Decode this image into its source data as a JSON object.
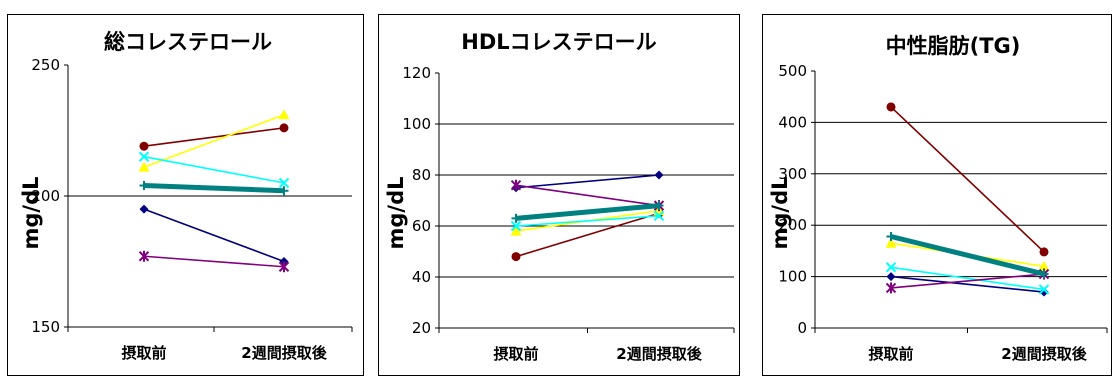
{
  "chart_data": [
    {
      "type": "line",
      "title": "総コレステロール",
      "ylabel": "mg/dL",
      "categories": [
        "摂取前",
        "2週間摂取後"
      ],
      "ylim": [
        150,
        250
      ],
      "yticks": [
        150,
        200,
        250
      ],
      "grid": "y",
      "series": [
        {
          "color": "#000080",
          "marker": "diamond",
          "values": [
            195,
            175
          ]
        },
        {
          "color": "#800000",
          "marker": "circle",
          "values": [
            219,
            226
          ]
        },
        {
          "color": "#FFFF00",
          "marker": "triangle",
          "values": [
            211,
            231
          ]
        },
        {
          "color": "#00FFFF",
          "marker": "x",
          "values": [
            215,
            205
          ]
        },
        {
          "color": "#800080",
          "marker": "star",
          "values": [
            177,
            173
          ]
        },
        {
          "color": "#008080",
          "marker": "plus",
          "values": [
            204,
            202
          ],
          "thick": true
        }
      ]
    },
    {
      "type": "line",
      "title": "HDLコレステロール",
      "ylabel": "mg/dL",
      "categories": [
        "摂取前",
        "2週間摂取後"
      ],
      "ylim": [
        20,
        120
      ],
      "yticks": [
        20,
        40,
        60,
        80,
        100,
        120
      ],
      "grid": "y",
      "series": [
        {
          "color": "#000080",
          "marker": "diamond",
          "values": [
            75,
            80
          ]
        },
        {
          "color": "#800000",
          "marker": "circle",
          "values": [
            48,
            65
          ]
        },
        {
          "color": "#FFFF00",
          "marker": "triangle",
          "values": [
            58,
            66
          ]
        },
        {
          "color": "#00FFFF",
          "marker": "x",
          "values": [
            60,
            64
          ]
        },
        {
          "color": "#800080",
          "marker": "star",
          "values": [
            76,
            68
          ]
        },
        {
          "color": "#008080",
          "marker": "plus",
          "values": [
            63,
            68
          ],
          "thick": true
        }
      ]
    },
    {
      "type": "line",
      "title": "中性脂肪(TG)",
      "ylabel": "mg/dL",
      "categories": [
        "摂取前",
        "2週間摂取後"
      ],
      "ylim": [
        0,
        500
      ],
      "yticks": [
        0,
        100,
        200,
        300,
        400,
        500
      ],
      "grid": "y",
      "series": [
        {
          "color": "#000080",
          "marker": "diamond",
          "values": [
            100,
            70
          ]
        },
        {
          "color": "#800000",
          "marker": "circle",
          "values": [
            430,
            148
          ]
        },
        {
          "color": "#FFFF00",
          "marker": "triangle",
          "values": [
            165,
            120
          ]
        },
        {
          "color": "#00FFFF",
          "marker": "x",
          "values": [
            118,
            75
          ]
        },
        {
          "color": "#800080",
          "marker": "star",
          "values": [
            78,
            105
          ]
        },
        {
          "color": "#008080",
          "marker": "plus",
          "values": [
            178,
            105
          ],
          "thick": true
        }
      ]
    }
  ]
}
